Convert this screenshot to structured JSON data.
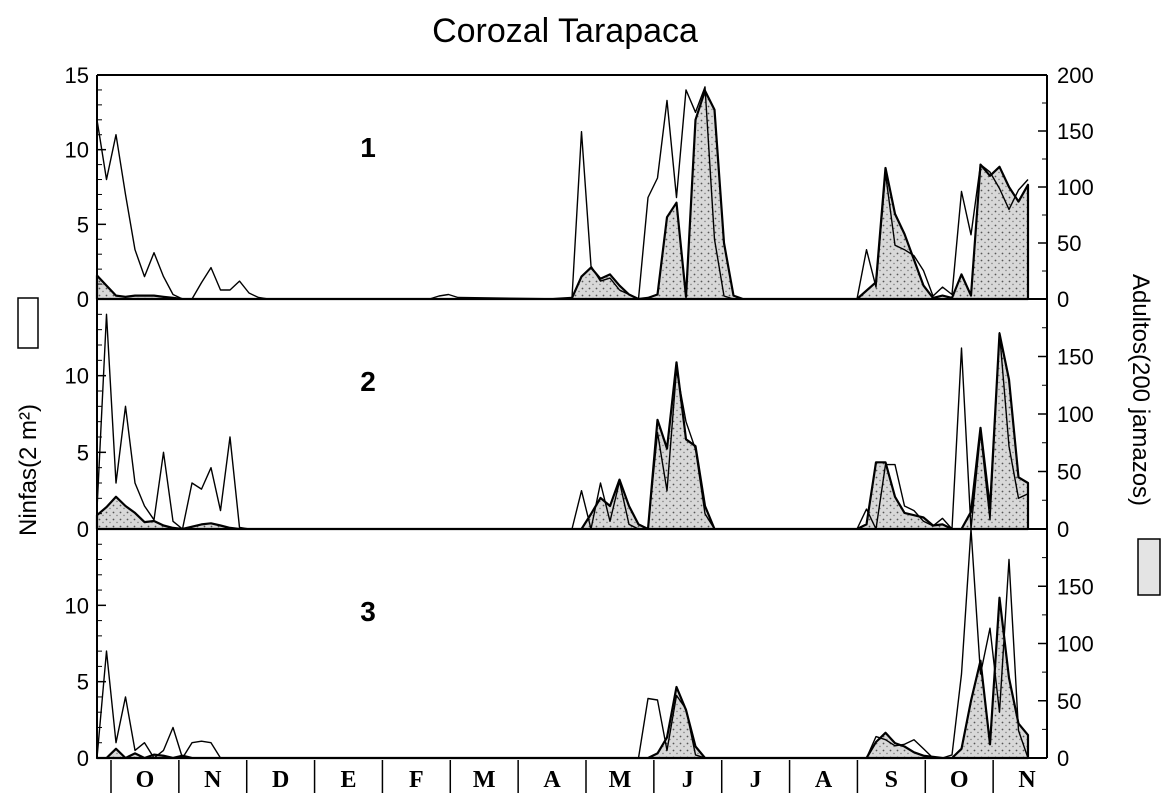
{
  "chart_data": {
    "type": "area",
    "title": "Corozal Tarapaca",
    "ylabel_left": "Ninfas(2 m²)",
    "ylabel_right": "Adultos(200 jamazos)",
    "months": [
      "O",
      "N",
      "D",
      "E",
      "F",
      "M",
      "A",
      "M",
      "J",
      "J",
      "A",
      "S",
      "O",
      "N"
    ],
    "x_range": [
      0,
      100
    ],
    "left_axis": {
      "range": [
        0,
        15
      ],
      "ticks_top": [
        0,
        5,
        10,
        15
      ],
      "ticks_lower": [
        0,
        5,
        10
      ]
    },
    "right_axis": {
      "range": [
        0,
        200
      ],
      "ticks_top": [
        0,
        50,
        100,
        150,
        200
      ],
      "ticks_lower": [
        0,
        50,
        100,
        150
      ]
    },
    "panels": [
      {
        "label": "1",
        "nymphs": [
          [
            0,
            12
          ],
          [
            1,
            8
          ],
          [
            2,
            11
          ],
          [
            3,
            7
          ],
          [
            4,
            3.3
          ],
          [
            5,
            1.5
          ],
          [
            6,
            3.1
          ],
          [
            7,
            1.5
          ],
          [
            8,
            0.3
          ],
          [
            9,
            0
          ],
          [
            10,
            0
          ],
          [
            11,
            1.1
          ],
          [
            12,
            2.1
          ],
          [
            13,
            0.6
          ],
          [
            14,
            0.6
          ],
          [
            15,
            1.2
          ],
          [
            16,
            0.4
          ],
          [
            17,
            0.1
          ],
          [
            18,
            0
          ],
          [
            25,
            0
          ],
          [
            35,
            0
          ],
          [
            36,
            0.2
          ],
          [
            37,
            0.3
          ],
          [
            38,
            0.1
          ],
          [
            49,
            0
          ],
          [
            50,
            0.1
          ],
          [
            51,
            11.2
          ],
          [
            52,
            2.2
          ],
          [
            53,
            1.2
          ],
          [
            54,
            1.4
          ],
          [
            55,
            0.6
          ],
          [
            56,
            0.3
          ],
          [
            57,
            0
          ],
          [
            58,
            6.8
          ],
          [
            59,
            8.1
          ],
          [
            60,
            13.3
          ],
          [
            61,
            6.8
          ],
          [
            62,
            14
          ],
          [
            63,
            12.5
          ],
          [
            64,
            14.2
          ],
          [
            65,
            4
          ],
          [
            66,
            0.2
          ],
          [
            67,
            0
          ],
          [
            80,
            0
          ],
          [
            81,
            3.3
          ],
          [
            82,
            0.8
          ],
          [
            83,
            8.4
          ],
          [
            84,
            3.6
          ],
          [
            85,
            3.3
          ],
          [
            86,
            2.9
          ],
          [
            87,
            1.9
          ],
          [
            88,
            0.2
          ],
          [
            89,
            0.8
          ],
          [
            90,
            0.3
          ],
          [
            91,
            7.2
          ],
          [
            92,
            4.3
          ],
          [
            93,
            9
          ],
          [
            94,
            8.5
          ],
          [
            95,
            7.4
          ],
          [
            96,
            6
          ],
          [
            97,
            7.3
          ],
          [
            98,
            8
          ]
        ],
        "adults": [
          [
            0,
            21
          ],
          [
            1,
            12
          ],
          [
            2,
            3
          ],
          [
            3,
            2
          ],
          [
            4,
            3
          ],
          [
            5,
            3
          ],
          [
            6,
            3
          ],
          [
            7,
            2
          ],
          [
            8,
            1
          ],
          [
            9,
            0
          ],
          [
            48,
            0
          ],
          [
            50,
            1
          ],
          [
            51,
            20
          ],
          [
            52,
            28
          ],
          [
            53,
            18
          ],
          [
            54,
            22
          ],
          [
            55,
            12
          ],
          [
            56,
            4
          ],
          [
            57,
            0
          ],
          [
            58,
            1
          ],
          [
            59,
            4
          ],
          [
            60,
            73
          ],
          [
            61,
            86
          ],
          [
            62,
            2
          ],
          [
            63,
            160
          ],
          [
            64,
            186
          ],
          [
            65,
            169
          ],
          [
            66,
            50
          ],
          [
            67,
            3
          ],
          [
            68,
            0
          ],
          [
            80,
            0
          ],
          [
            82,
            15
          ],
          [
            83,
            117
          ],
          [
            84,
            76
          ],
          [
            85,
            58
          ],
          [
            86,
            35
          ],
          [
            87,
            12
          ],
          [
            88,
            1
          ],
          [
            89,
            3
          ],
          [
            90,
            1
          ],
          [
            91,
            22
          ],
          [
            92,
            3
          ],
          [
            93,
            120
          ],
          [
            94,
            110
          ],
          [
            95,
            118
          ],
          [
            96,
            100
          ],
          [
            97,
            87
          ],
          [
            98,
            102
          ]
        ]
      },
      {
        "label": "2",
        "nymphs": [
          [
            0,
            1.3
          ],
          [
            1,
            14
          ],
          [
            2,
            3
          ],
          [
            3,
            8
          ],
          [
            4,
            3
          ],
          [
            5,
            1.5
          ],
          [
            6,
            0.6
          ],
          [
            7,
            5
          ],
          [
            8,
            0.5
          ],
          [
            9,
            0
          ],
          [
            10,
            3
          ],
          [
            11,
            2.6
          ],
          [
            12,
            4
          ],
          [
            13,
            1.2
          ],
          [
            14,
            6
          ],
          [
            15,
            0.1
          ],
          [
            16,
            0
          ],
          [
            50,
            0
          ],
          [
            51,
            2.5
          ],
          [
            52,
            0
          ],
          [
            53,
            3
          ],
          [
            54,
            0.5
          ],
          [
            55,
            3.1
          ],
          [
            56,
            0.3
          ],
          [
            57,
            0
          ],
          [
            58,
            0
          ],
          [
            59,
            6.3
          ],
          [
            60,
            2.5
          ],
          [
            61,
            10.4
          ],
          [
            62,
            7
          ],
          [
            63,
            5.2
          ],
          [
            64,
            1
          ],
          [
            65,
            0
          ],
          [
            80,
            0
          ],
          [
            81,
            1.3
          ],
          [
            82,
            0
          ],
          [
            83,
            4.2
          ],
          [
            84,
            4.2
          ],
          [
            85,
            1.5
          ],
          [
            86,
            1.2
          ],
          [
            87,
            0.5
          ],
          [
            88,
            0.2
          ],
          [
            89,
            0.7
          ],
          [
            90,
            0
          ],
          [
            91,
            11.8
          ],
          [
            92,
            0
          ],
          [
            93,
            6.3
          ],
          [
            94,
            0.6
          ],
          [
            95,
            12.8
          ],
          [
            96,
            5.4
          ],
          [
            97,
            2
          ],
          [
            98,
            2.3
          ]
        ],
        "adults": [
          [
            0,
            12
          ],
          [
            1,
            19
          ],
          [
            2,
            28
          ],
          [
            3,
            20
          ],
          [
            4,
            14
          ],
          [
            5,
            6
          ],
          [
            6,
            7
          ],
          [
            7,
            3
          ],
          [
            8,
            1
          ],
          [
            9,
            0
          ],
          [
            10,
            2
          ],
          [
            11,
            4
          ],
          [
            12,
            5
          ],
          [
            13,
            3
          ],
          [
            14,
            1
          ],
          [
            15,
            0
          ],
          [
            48,
            0
          ],
          [
            50,
            0
          ],
          [
            51,
            0
          ],
          [
            52,
            13
          ],
          [
            53,
            27
          ],
          [
            54,
            20
          ],
          [
            55,
            43
          ],
          [
            56,
            20
          ],
          [
            57,
            4
          ],
          [
            58,
            0
          ],
          [
            59,
            95
          ],
          [
            60,
            70
          ],
          [
            61,
            145
          ],
          [
            62,
            78
          ],
          [
            63,
            72
          ],
          [
            64,
            20
          ],
          [
            65,
            0
          ],
          [
            80,
            0
          ],
          [
            81,
            4
          ],
          [
            82,
            58
          ],
          [
            83,
            58
          ],
          [
            84,
            28
          ],
          [
            85,
            14
          ],
          [
            86,
            12
          ],
          [
            87,
            10
          ],
          [
            88,
            3
          ],
          [
            89,
            4
          ],
          [
            90,
            0
          ],
          [
            91,
            0
          ],
          [
            92,
            15
          ],
          [
            93,
            88
          ],
          [
            94,
            18
          ],
          [
            95,
            170
          ],
          [
            96,
            130
          ],
          [
            97,
            45
          ],
          [
            98,
            40
          ]
        ]
      },
      {
        "label": "3",
        "nymphs": [
          [
            0,
            0
          ],
          [
            1,
            7
          ],
          [
            2,
            1
          ],
          [
            3,
            4
          ],
          [
            4,
            0.5
          ],
          [
            5,
            1
          ],
          [
            6,
            0
          ],
          [
            7,
            0.5
          ],
          [
            8,
            2
          ],
          [
            9,
            0
          ],
          [
            10,
            1
          ],
          [
            11,
            1.1
          ],
          [
            12,
            1
          ],
          [
            13,
            0
          ],
          [
            53,
            0
          ],
          [
            57,
            0
          ],
          [
            58,
            3.9
          ],
          [
            59,
            3.8
          ],
          [
            60,
            0.5
          ],
          [
            61,
            4.1
          ],
          [
            62,
            3.2
          ],
          [
            63,
            0.2
          ],
          [
            64,
            0
          ],
          [
            78,
            0
          ],
          [
            81,
            0
          ],
          [
            82,
            1.4
          ],
          [
            83,
            1.2
          ],
          [
            84,
            0.8
          ],
          [
            85,
            0.9
          ],
          [
            86,
            1.2
          ],
          [
            87,
            0.6
          ],
          [
            88,
            0
          ],
          [
            89,
            0
          ],
          [
            90,
            0.2
          ],
          [
            91,
            5.5
          ],
          [
            92,
            15
          ],
          [
            93,
            5.5
          ],
          [
            94,
            8.5
          ],
          [
            95,
            3
          ],
          [
            96,
            13
          ],
          [
            97,
            1.8
          ],
          [
            98,
            0
          ]
        ],
        "adults": [
          [
            0,
            0
          ],
          [
            1,
            0
          ],
          [
            2,
            8
          ],
          [
            3,
            0
          ],
          [
            4,
            4
          ],
          [
            5,
            0
          ],
          [
            6,
            3
          ],
          [
            7,
            2
          ],
          [
            8,
            0
          ],
          [
            9,
            2
          ],
          [
            10,
            0
          ],
          [
            57,
            0
          ],
          [
            58,
            0
          ],
          [
            59,
            4
          ],
          [
            60,
            18
          ],
          [
            61,
            62
          ],
          [
            62,
            42
          ],
          [
            63,
            10
          ],
          [
            64,
            0
          ],
          [
            81,
            0
          ],
          [
            82,
            14
          ],
          [
            83,
            22
          ],
          [
            84,
            13
          ],
          [
            85,
            10
          ],
          [
            86,
            5
          ],
          [
            87,
            2
          ],
          [
            88,
            1
          ],
          [
            89,
            0
          ],
          [
            90,
            0
          ],
          [
            91,
            8
          ],
          [
            92,
            50
          ],
          [
            93,
            85
          ],
          [
            94,
            12
          ],
          [
            95,
            140
          ],
          [
            96,
            70
          ],
          [
            97,
            30
          ],
          [
            98,
            20
          ]
        ]
      }
    ]
  }
}
